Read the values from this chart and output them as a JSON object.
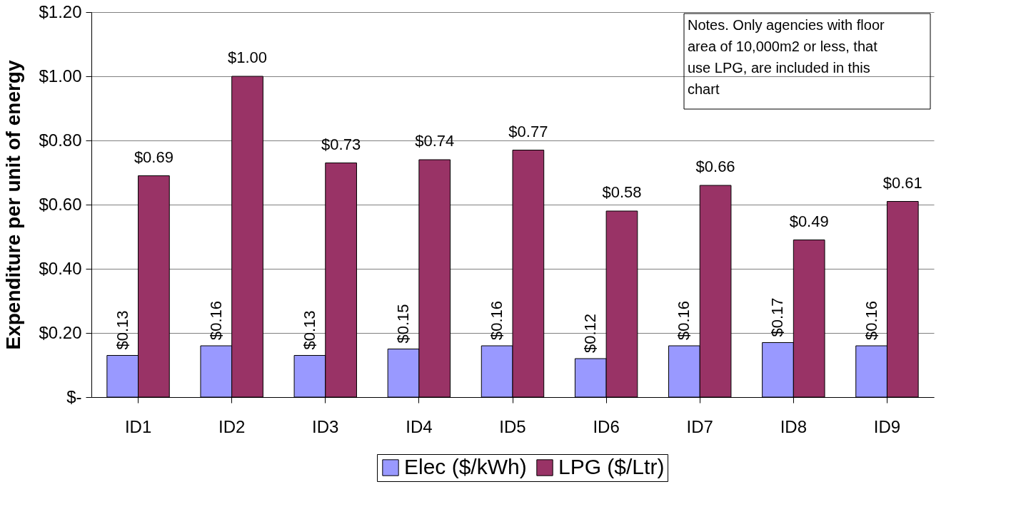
{
  "chart_data": {
    "type": "bar",
    "ylabel": "Expenditure per unit of energy",
    "categories": [
      "ID1",
      "ID2",
      "ID3",
      "ID4",
      "ID5",
      "ID6",
      "ID7",
      "ID8",
      "ID9"
    ],
    "series": [
      {
        "name": "Elec ($/kWh)",
        "color": "#9999ff",
        "values": [
          0.13,
          0.16,
          0.13,
          0.15,
          0.16,
          0.12,
          0.16,
          0.17,
          0.16
        ],
        "value_labels": [
          "$0.13",
          "$0.16",
          "$0.13",
          "$0.15",
          "$0.16",
          "$0.12",
          "$0.16",
          "$0.17",
          "$0.16"
        ]
      },
      {
        "name": "LPG ($/Ltr)",
        "color": "#993366",
        "values": [
          0.69,
          1.0,
          0.73,
          0.74,
          0.77,
          0.58,
          0.66,
          0.49,
          0.61
        ],
        "value_labels": [
          "$0.69",
          "$1.00",
          "$0.73",
          "$0.74",
          "$0.77",
          "$0.58",
          "$0.66",
          "$0.49",
          "$0.61"
        ]
      }
    ],
    "ylim": [
      0,
      1.2
    ],
    "yticks": [
      {
        "value": 0,
        "label": "$-"
      },
      {
        "value": 0.2,
        "label": "$0.20"
      },
      {
        "value": 0.4,
        "label": "$0.40"
      },
      {
        "value": 0.6,
        "label": "$0.60"
      },
      {
        "value": 0.8,
        "label": "$0.80"
      },
      {
        "value": 1.0,
        "label": "$1.00"
      },
      {
        "value": 1.2,
        "label": "$1.20"
      }
    ],
    "grid": "y",
    "legend": "bottom",
    "annotations": [
      "Notes. Only agencies with floor area of 10,000m2 or less, that use LPG, are included in this chart"
    ]
  }
}
